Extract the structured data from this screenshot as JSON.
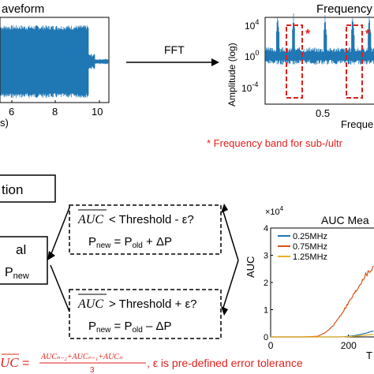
{
  "waveform": {
    "title": "aveform",
    "x_ticks": [
      "6",
      "8",
      "10"
    ],
    "x_unit": "s)"
  },
  "fft_label": "FFT",
  "spectrum": {
    "title": "Frequency",
    "ylabel": "Amplitude (log)",
    "y_ticks": [
      "10",
      "10",
      "10"
    ],
    "y_exps": [
      "4",
      "0",
      "-4"
    ],
    "x_ticks": [
      "0.5"
    ],
    "xlabel": "Freque",
    "band_marker": "*",
    "color": "#1f77b4"
  },
  "note": "* Frequency band for sub-/ultr",
  "note_color": "#e0201b",
  "partial_box_label": "tion",
  "partial_box2_label_top": "al",
  "partial_box2_label_bottom": "P",
  "partial_box2_label_sub": "new",
  "cond_top": {
    "auc": "AUC",
    "condition": " < Threshold - ε?",
    "p_new": "P",
    "p_new_sub": "new",
    "eq": " = P",
    "p_old_sub": "old",
    "rhs": " + ΔP"
  },
  "cond_bottom": {
    "auc": "AUC",
    "condition": " > Threshold + ε?",
    "p_new": "P",
    "p_new_sub": "new",
    "eq": " = P",
    "p_old_sub": "old",
    "rhs": " – ΔP"
  },
  "auc_chart": {
    "title": "AUC Mea",
    "ylabel": "AUC",
    "scale_label": "×10",
    "scale_exp": "4",
    "y_ticks": [
      "0",
      "1",
      "2",
      "3",
      "4"
    ],
    "x_ticks": [
      "0",
      "200"
    ],
    "xlabel": "T",
    "legend": [
      "0.25MHz",
      "0.75MHz",
      "1.25MHz"
    ],
    "colors": [
      "#1f77b4",
      "#d95319",
      "#edb120"
    ]
  },
  "formula": {
    "lhs": "UC",
    "eq": " = ",
    "numerator": "AUCₙ₋₂+AUCₙ₋₁+AUCₙ",
    "denominator": "3",
    "tail": ", ε is pre-defined error tolerance",
    "color": "#e0201b"
  },
  "chart_data": {
    "type": "line",
    "title": "AUC Mea",
    "xlabel": "T",
    "ylabel": "AUC",
    "ylim": [
      0,
      40000
    ],
    "xlim": [
      0,
      300
    ],
    "x": [
      0,
      40,
      80,
      120,
      140,
      160,
      180,
      200,
      220,
      240,
      260,
      280,
      300
    ],
    "series": [
      {
        "name": "0.25MHz",
        "values": [
          0,
          0,
          0,
          0,
          0,
          0,
          0,
          200,
          600,
          1200,
          2000,
          2600,
          3000
        ]
      },
      {
        "name": "0.75MHz",
        "values": [
          0,
          0,
          0,
          200,
          1500,
          4000,
          8000,
          12500,
          17000,
          22000,
          25000,
          28500,
          31000
        ]
      },
      {
        "name": "1.25MHz",
        "values": [
          0,
          0,
          0,
          0,
          0,
          0,
          0,
          100,
          300,
          600,
          900,
          1200,
          1500
        ]
      }
    ]
  }
}
